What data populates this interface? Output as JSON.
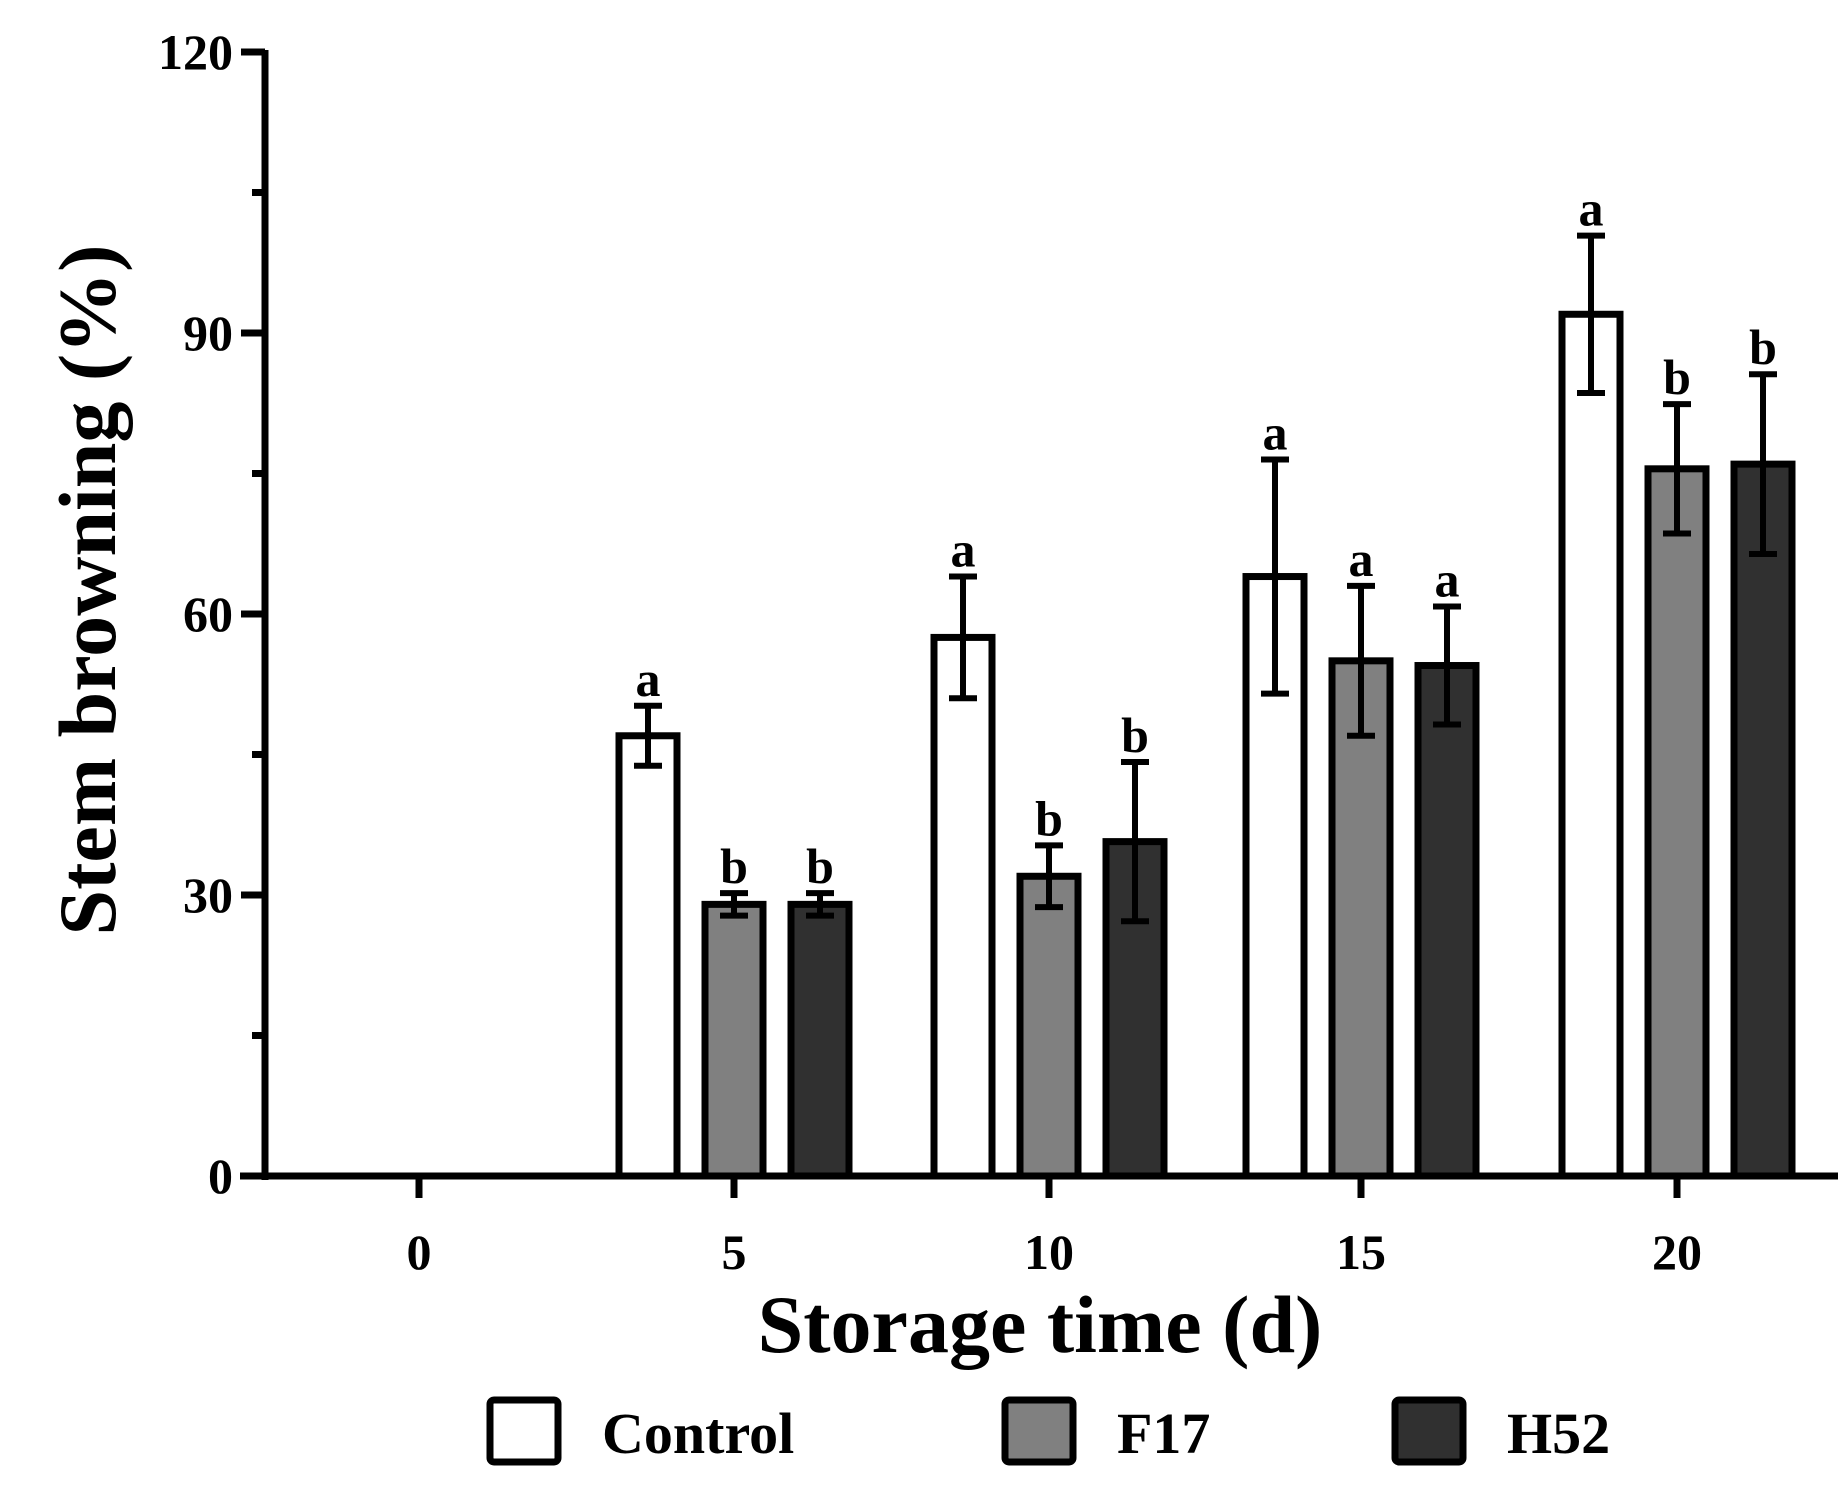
{
  "chart_data": {
    "type": "bar",
    "title": "",
    "xlabel": "Storage time (d)",
    "ylabel": "Stem browning (%)",
    "categories": [
      "0",
      "5",
      "10",
      "15",
      "20"
    ],
    "ylim": [
      0,
      120
    ],
    "yticks": [
      0,
      30,
      60,
      90,
      120
    ],
    "yminor_ticks": [
      15,
      45,
      75,
      105
    ],
    "grid": false,
    "legend_position": "bottom",
    "series": [
      {
        "name": "Control",
        "color": "#ffffff",
        "values": [
          0,
          47,
          57.5,
          64,
          92
        ],
        "errors": [
          0,
          3.2,
          6.5,
          12.5,
          8.4
        ],
        "letters": [
          "",
          "a",
          "a",
          "a",
          "a"
        ]
      },
      {
        "name": "F17",
        "color": "#808080",
        "values": [
          0,
          29,
          32,
          55,
          75.5
        ],
        "errors": [
          0,
          1.2,
          3.3,
          8,
          6.9
        ],
        "letters": [
          "",
          "b",
          "b",
          "a",
          "b"
        ]
      },
      {
        "name": "H52",
        "color": "#303030",
        "values": [
          0,
          29,
          35.7,
          54.5,
          76
        ],
        "errors": [
          0,
          1.2,
          8.5,
          6.3,
          9.6
        ],
        "letters": [
          "",
          "b",
          "b",
          "a",
          "b"
        ]
      }
    ]
  },
  "legend": {
    "items": [
      {
        "label": "Control",
        "color": "#ffffff"
      },
      {
        "label": "F17",
        "color": "#808080"
      },
      {
        "label": "H52",
        "color": "#303030"
      }
    ]
  }
}
